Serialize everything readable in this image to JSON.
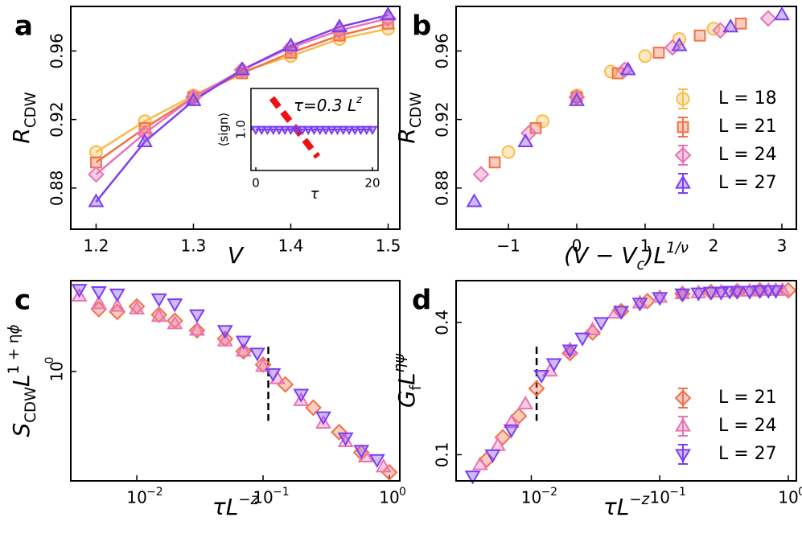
{
  "chart_data": [
    {
      "label": "a",
      "type": "line",
      "lines": true,
      "xlabel": [
        {
          "text": "V",
          "italic": true
        }
      ],
      "ylabel": [
        {
          "text": "R",
          "italic": true
        },
        {
          "text": "CDW",
          "sub": true
        }
      ],
      "x": [
        1.2,
        1.25,
        1.3,
        1.35,
        1.4,
        1.45,
        1.5
      ],
      "xlim": [
        1.174,
        1.512
      ],
      "xticks": [
        1.2,
        1.3,
        1.4,
        1.5
      ],
      "ylim": [
        0.856,
        0.986
      ],
      "yticks": [
        0.88,
        0.92,
        0.96
      ],
      "series": [
        {
          "color": "#f9bd4e",
          "marker": "circle",
          "values": [
            0.901,
            0.919,
            0.934,
            0.948,
            0.957,
            0.967,
            0.973
          ]
        },
        {
          "color": "#f0714a",
          "marker": "square",
          "values": [
            0.895,
            0.915,
            0.933,
            0.947,
            0.959,
            0.969,
            0.976
          ]
        },
        {
          "color": "#ea73b4",
          "marker": "diamond",
          "values": [
            0.888,
            0.912,
            0.933,
            0.949,
            0.962,
            0.972,
            0.979
          ]
        },
        {
          "color": "#7b3ff2",
          "marker": "triangle-up",
          "values": [
            0.872,
            0.907,
            0.931,
            0.949,
            0.963,
            0.974,
            0.981
          ]
        }
      ]
    },
    {
      "label": "b",
      "type": "scatter",
      "legend": "lower right",
      "xlabel": [
        {
          "text": "(V − V",
          "italic": true
        },
        {
          "text": "c",
          "sub": true,
          "italic": true
        },
        {
          "text": ")L",
          "italic": true
        },
        {
          "text": "1/ν",
          "sup": true,
          "italic": true
        }
      ],
      "ylabel": [
        {
          "text": "R",
          "italic": true
        },
        {
          "text": "CDW",
          "sub": true
        }
      ],
      "xlim": [
        -1.765,
        3.212
      ],
      "xticks": [
        {
          "value": -1,
          "label": "−1"
        },
        0,
        1,
        2,
        3
      ],
      "ylim": [
        0.856,
        0.986
      ],
      "yticks": [
        0.88,
        0.92,
        0.96
      ],
      "series": [
        {
          "name": "L = 18",
          "color": "#f9bd4e",
          "marker": "circle",
          "x": [
            -1.0,
            -0.5,
            0.0,
            0.5,
            1.0,
            1.5,
            2.0
          ],
          "values": [
            0.901,
            0.919,
            0.934,
            0.948,
            0.957,
            0.967,
            0.973
          ]
        },
        {
          "name": "L = 21",
          "color": "#f0714a",
          "marker": "square",
          "x": [
            -1.2,
            -0.6,
            0.0,
            0.6,
            1.2,
            1.8,
            2.4
          ],
          "values": [
            0.895,
            0.915,
            0.933,
            0.947,
            0.959,
            0.969,
            0.976
          ]
        },
        {
          "name": "L = 24",
          "color": "#ea73b4",
          "marker": "diamond",
          "x": [
            -1.4,
            -0.7,
            0.0,
            0.7,
            1.4,
            2.1,
            2.8
          ],
          "values": [
            0.888,
            0.912,
            0.933,
            0.949,
            0.962,
            0.972,
            0.979
          ]
        },
        {
          "name": "L = 27",
          "color": "#7b3ff2",
          "marker": "triangle-up",
          "x": [
            -1.5,
            -0.75,
            0.0,
            0.75,
            1.5,
            2.25,
            3.0
          ],
          "values": [
            0.872,
            0.907,
            0.931,
            0.949,
            0.963,
            0.974,
            0.981
          ]
        }
      ]
    },
    {
      "label": "c",
      "type": "scatter",
      "xscale": "log",
      "yscale": "log",
      "xlabel": [
        {
          "text": "τL",
          "italic": true
        },
        {
          "text": "−z",
          "sup": true,
          "italic": true
        }
      ],
      "ylabel": [
        {
          "text": "S",
          "italic": true
        },
        {
          "text": "CDW",
          "sub": true
        },
        {
          "text": "L",
          "italic": true
        },
        {
          "text": "1 + η",
          "sup": true
        },
        {
          "text": "ϕ",
          "sup": true,
          "italic": true
        }
      ],
      "xlim": [
        0.003,
        1.21
      ],
      "xticks": [
        {
          "value": 0.01,
          "label": "10",
          "exponent": "−2"
        },
        {
          "value": 0.1,
          "label": "10",
          "exponent": "−1"
        },
        {
          "value": 1,
          "label": "10",
          "exponent": "0"
        }
      ],
      "ylim": [
        0.34,
        2.45
      ],
      "yticks": [
        {
          "value": 1,
          "label": "10",
          "exponent": "0"
        }
      ],
      "vline": {
        "x": 0.11
      },
      "series": [
        {
          "name": "L = 21",
          "color": "#f0714a",
          "marker": "diamond",
          "x": [
            0.005,
            0.007,
            0.01,
            0.015,
            0.02,
            0.03,
            0.05,
            0.07,
            0.1,
            0.15,
            0.25,
            0.4,
            0.6,
            1.0
          ],
          "values": [
            1.85,
            1.8,
            1.9,
            1.75,
            1.65,
            1.5,
            1.38,
            1.22,
            1.07,
            0.88,
            0.7,
            0.55,
            0.45,
            0.37
          ]
        },
        {
          "name": "L = 24",
          "color": "#ea73b4",
          "marker": "triangle-up",
          "x": [
            0.0035,
            0.005,
            0.007,
            0.01,
            0.015,
            0.02,
            0.03,
            0.05,
            0.07,
            0.1,
            0.13,
            0.2,
            0.3,
            0.45,
            0.65,
            0.9
          ],
          "values": [
            2.1,
            1.95,
            1.9,
            1.85,
            1.72,
            1.6,
            1.5,
            1.35,
            1.22,
            1.05,
            0.93,
            0.75,
            0.6,
            0.5,
            0.43,
            0.39
          ]
        },
        {
          "name": "L = 27",
          "color": "#7b3ff2",
          "marker": "triangle-down",
          "x": [
            0.0035,
            0.005,
            0.007,
            0.015,
            0.02,
            0.03,
            0.05,
            0.07,
            0.09,
            0.12,
            0.2,
            0.3,
            0.45,
            0.6,
            0.8
          ],
          "values": [
            2.25,
            2.2,
            2.15,
            2.05,
            1.95,
            1.75,
            1.5,
            1.35,
            1.2,
            0.98,
            0.8,
            0.64,
            0.52,
            0.46,
            0.42
          ]
        }
      ]
    },
    {
      "label": "d",
      "type": "scatter",
      "xscale": "log",
      "yscale": "log",
      "legend": "lower right",
      "xlabel": [
        {
          "text": "τL",
          "italic": true
        },
        {
          "text": "−z",
          "sup": true,
          "italic": true
        }
      ],
      "ylabel": [
        {
          "text": "G",
          "italic": true
        },
        {
          "text": "f",
          "sub": true
        },
        {
          "text": "L",
          "italic": true
        },
        {
          "text": "η",
          "sup": true,
          "italic": true
        },
        {
          "text": "ψ",
          "sup": true,
          "italic": true
        }
      ],
      "xlim": [
        0.0026,
        1.155
      ],
      "xticks": [
        {
          "value": 0.01,
          "label": "10",
          "exponent": "−2"
        },
        {
          "value": 0.1,
          "label": "10",
          "exponent": "−1"
        },
        {
          "value": 1,
          "label": "10",
          "exponent": "0"
        }
      ],
      "ylim": [
        0.076,
        0.62
      ],
      "yticks": [
        0.1,
        0.4
      ],
      "vline": {
        "x": 0.011
      },
      "series": [
        {
          "name": "L = 21",
          "color": "#f0714a",
          "marker": "diamond",
          "x": [
            0.0045,
            0.006,
            0.008,
            0.011,
            0.02,
            0.03,
            0.05,
            0.08,
            0.15,
            0.25,
            0.4,
            0.6,
            1.0
          ],
          "values": [
            0.095,
            0.12,
            0.15,
            0.2,
            0.29,
            0.36,
            0.45,
            0.5,
            0.54,
            0.55,
            0.555,
            0.56,
            0.56
          ]
        },
        {
          "name": "L = 24",
          "color": "#ea73b4",
          "marker": "triangle-up",
          "x": [
            0.004,
            0.0055,
            0.007,
            0.009,
            0.014,
            0.02,
            0.03,
            0.045,
            0.07,
            0.1,
            0.15,
            0.2,
            0.3,
            0.4,
            0.5,
            0.6,
            0.7,
            0.8,
            0.9
          ],
          "values": [
            0.09,
            0.11,
            0.14,
            0.17,
            0.24,
            0.3,
            0.37,
            0.44,
            0.49,
            0.52,
            0.54,
            0.545,
            0.55,
            0.555,
            0.555,
            0.56,
            0.56,
            0.56,
            0.56
          ]
        },
        {
          "name": "L = 27",
          "color": "#7b3ff2",
          "marker": "triangle-down",
          "x": [
            0.0035,
            0.005,
            0.007,
            0.012,
            0.015,
            0.02,
            0.025,
            0.035,
            0.05,
            0.07,
            0.1,
            0.15,
            0.2,
            0.25,
            0.3,
            0.35,
            0.4,
            0.5,
            0.6,
            0.7,
            0.8
          ],
          "values": [
            0.08,
            0.1,
            0.13,
            0.23,
            0.26,
            0.3,
            0.34,
            0.4,
            0.45,
            0.49,
            0.52,
            0.54,
            0.545,
            0.55,
            0.55,
            0.555,
            0.555,
            0.555,
            0.56,
            0.56,
            0.56
          ]
        }
      ]
    },
    {
      "type": "line",
      "lines": true,
      "xlabel": [
        {
          "text": "τ",
          "italic": true
        }
      ],
      "ylabel": [
        {
          "text": "⟨sign⟩"
        }
      ],
      "annotation": [
        {
          "text": "τ=0.3 ",
          "italic": true
        },
        {
          "text": "L",
          "italic": true
        },
        {
          "text": "z",
          "sup": true,
          "italic": true
        }
      ],
      "x": [
        0,
        1,
        2,
        3,
        4,
        5,
        6,
        7,
        8,
        9,
        10,
        11,
        12,
        13,
        14,
        15,
        16,
        17,
        18,
        19,
        20
      ],
      "xlim": [
        -0.83,
        20.97
      ],
      "xticks": [
        0,
        20
      ],
      "ylim": [
        0.9,
        1.1
      ],
      "yticks": [
        {
          "value": 1,
          "label": "1.0"
        }
      ],
      "series": [
        {
          "color": "#7b3ff2",
          "marker": "triangle-down",
          "values": [
            1,
            1,
            1,
            1,
            1,
            1,
            1,
            1,
            1,
            1,
            1,
            1,
            1,
            1,
            1,
            1,
            1,
            1,
            1,
            1,
            1
          ]
        }
      ]
    }
  ]
}
